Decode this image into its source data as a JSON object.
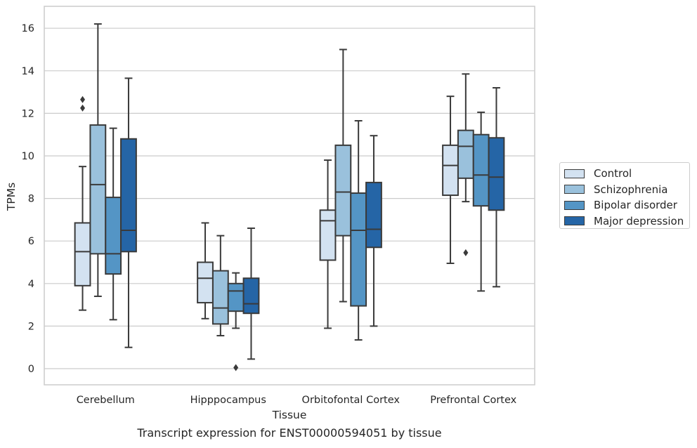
{
  "chart_data": {
    "type": "box",
    "title": "Transcript expression for ENST00000594051 by tissue",
    "xlabel": "Tissue",
    "ylabel": "TPMs",
    "ylim": [
      -0.75,
      17.0
    ],
    "yticks": [
      0,
      2,
      4,
      6,
      8,
      10,
      12,
      14,
      16
    ],
    "grid": true,
    "legend_position": "right",
    "categories": [
      "Cerebellum",
      "Hipppocampus",
      "Orbitofontal Cortex",
      "Prefrontal Cortex"
    ],
    "series": [
      {
        "name": "Control",
        "color": "#d3e2f1",
        "boxes": [
          {
            "whisker_low": 2.75,
            "q1": 3.9,
            "median": 5.5,
            "q3": 6.85,
            "whisker_high": 9.5,
            "outliers": [
              12.25,
              12.65
            ]
          },
          {
            "whisker_low": 2.35,
            "q1": 3.1,
            "median": 4.25,
            "q3": 5.0,
            "whisker_high": 6.85,
            "outliers": []
          },
          {
            "whisker_low": 1.9,
            "q1": 5.1,
            "median": 6.95,
            "q3": 7.45,
            "whisker_high": 9.8,
            "outliers": []
          },
          {
            "whisker_low": 4.95,
            "q1": 8.15,
            "median": 9.55,
            "q3": 10.5,
            "whisker_high": 12.8,
            "outliers": []
          }
        ]
      },
      {
        "name": "Schizophrenia",
        "color": "#9ac1dc",
        "boxes": [
          {
            "whisker_low": 3.4,
            "q1": 5.4,
            "median": 8.65,
            "q3": 11.45,
            "whisker_high": 16.2,
            "outliers": []
          },
          {
            "whisker_low": 1.55,
            "q1": 2.1,
            "median": 2.85,
            "q3": 4.6,
            "whisker_high": 6.25,
            "outliers": []
          },
          {
            "whisker_low": 3.15,
            "q1": 6.25,
            "median": 8.3,
            "q3": 10.5,
            "whisker_high": 15.0,
            "outliers": []
          },
          {
            "whisker_low": 7.85,
            "q1": 8.95,
            "median": 10.45,
            "q3": 11.2,
            "whisker_high": 13.85,
            "outliers": [
              5.45
            ]
          }
        ]
      },
      {
        "name": "Bipolar disorder",
        "color": "#5495c5",
        "boxes": [
          {
            "whisker_low": 2.3,
            "q1": 4.45,
            "median": 5.4,
            "q3": 8.05,
            "whisker_high": 11.3,
            "outliers": []
          },
          {
            "whisker_low": 1.9,
            "q1": 2.7,
            "median": 3.65,
            "q3": 4.0,
            "whisker_high": 4.5,
            "outliers": [
              0.05
            ]
          },
          {
            "whisker_low": 1.35,
            "q1": 2.95,
            "median": 6.5,
            "q3": 8.25,
            "whisker_high": 11.65,
            "outliers": []
          },
          {
            "whisker_low": 3.65,
            "q1": 7.65,
            "median": 9.1,
            "q3": 11.0,
            "whisker_high": 12.05,
            "outliers": []
          }
        ]
      },
      {
        "name": "Major depression",
        "color": "#2565a6",
        "boxes": [
          {
            "whisker_low": 1.0,
            "q1": 5.5,
            "median": 6.5,
            "q3": 10.8,
            "whisker_high": 13.65,
            "outliers": []
          },
          {
            "whisker_low": 0.45,
            "q1": 2.6,
            "median": 3.05,
            "q3": 4.25,
            "whisker_high": 6.6,
            "outliers": []
          },
          {
            "whisker_low": 2.0,
            "q1": 5.7,
            "median": 6.55,
            "q3": 8.75,
            "whisker_high": 10.95,
            "outliers": []
          },
          {
            "whisker_low": 3.85,
            "q1": 7.45,
            "median": 9.0,
            "q3": 10.85,
            "whisker_high": 13.2,
            "outliers": []
          }
        ]
      }
    ]
  }
}
